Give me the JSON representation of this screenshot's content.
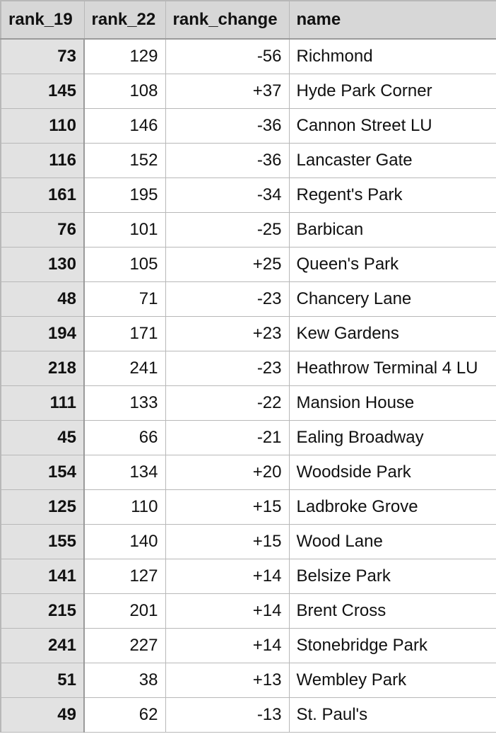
{
  "headers": [
    "rank_19",
    "rank_22",
    "rank_change",
    "name"
  ],
  "rows": [
    {
      "rank_19": "73",
      "rank_22": "129",
      "rank_change": "-56",
      "name": "Richmond"
    },
    {
      "rank_19": "145",
      "rank_22": "108",
      "rank_change": "+37",
      "name": "Hyde Park Corner"
    },
    {
      "rank_19": "110",
      "rank_22": "146",
      "rank_change": "-36",
      "name": "Cannon Street LU"
    },
    {
      "rank_19": "116",
      "rank_22": "152",
      "rank_change": "-36",
      "name": "Lancaster Gate"
    },
    {
      "rank_19": "161",
      "rank_22": "195",
      "rank_change": "-34",
      "name": "Regent's Park"
    },
    {
      "rank_19": "76",
      "rank_22": "101",
      "rank_change": "-25",
      "name": "Barbican"
    },
    {
      "rank_19": "130",
      "rank_22": "105",
      "rank_change": "+25",
      "name": "Queen's Park"
    },
    {
      "rank_19": "48",
      "rank_22": "71",
      "rank_change": "-23",
      "name": "Chancery Lane"
    },
    {
      "rank_19": "194",
      "rank_22": "171",
      "rank_change": "+23",
      "name": "Kew Gardens"
    },
    {
      "rank_19": "218",
      "rank_22": "241",
      "rank_change": "-23",
      "name": "Heathrow Terminal 4 LU"
    },
    {
      "rank_19": "111",
      "rank_22": "133",
      "rank_change": "-22",
      "name": "Mansion House"
    },
    {
      "rank_19": "45",
      "rank_22": "66",
      "rank_change": "-21",
      "name": "Ealing Broadway"
    },
    {
      "rank_19": "154",
      "rank_22": "134",
      "rank_change": "+20",
      "name": "Woodside Park"
    },
    {
      "rank_19": "125",
      "rank_22": "110",
      "rank_change": "+15",
      "name": "Ladbroke Grove"
    },
    {
      "rank_19": "155",
      "rank_22": "140",
      "rank_change": "+15",
      "name": "Wood Lane"
    },
    {
      "rank_19": "141",
      "rank_22": "127",
      "rank_change": "+14",
      "name": "Belsize Park"
    },
    {
      "rank_19": "215",
      "rank_22": "201",
      "rank_change": "+14",
      "name": "Brent Cross"
    },
    {
      "rank_19": "241",
      "rank_22": "227",
      "rank_change": "+14",
      "name": "Stonebridge Park"
    },
    {
      "rank_19": "51",
      "rank_22": "38",
      "rank_change": "+13",
      "name": "Wembley Park"
    },
    {
      "rank_19": "49",
      "rank_22": "62",
      "rank_change": "-13",
      "name": "St. Paul's"
    }
  ]
}
